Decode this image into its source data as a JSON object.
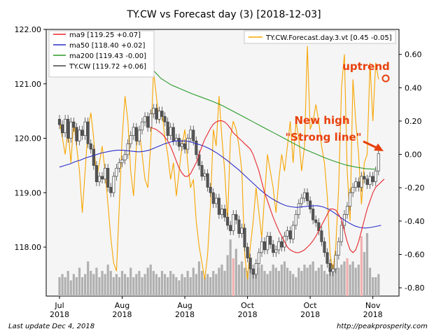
{
  "title": "TY.CW vs Forecast day (3)  [2018-12-03]",
  "footer": {
    "left": "Last update Dec  4, 2018",
    "right": "http://peakprosperity.com"
  },
  "annotations": {
    "uptrend": "uptrend",
    "new_high_line1": "New high",
    "new_high_line2": "\"Strong line\""
  },
  "colors": {
    "background": "#f5f5f5",
    "ma9": "#e8262b",
    "ma50": "#2b2fc9",
    "ma200": "#2a9a2a",
    "price": "#444444",
    "forecast": "#f7a500",
    "annotation": "#e8400c",
    "volume": "#b0b0b0",
    "volume_up": "#f0b0b0"
  },
  "chart_data": {
    "type": "candlestick",
    "title": "TY.CW vs Forecast day (3)  [2018-12-03]",
    "left_axis": {
      "ylim": [
        117.1,
        122.0
      ],
      "ticks": [
        "122.00",
        "121.00",
        "120.00",
        "119.00",
        "118.00"
      ],
      "tick_values": [
        122,
        121,
        120,
        119,
        118
      ]
    },
    "right_axis": {
      "ylim": [
        -0.85,
        0.75
      ],
      "ticks": [
        "0.60",
        "0.40",
        "0.20",
        "0.00",
        "-0.20",
        "-0.40",
        "-0.60",
        "-0.80"
      ],
      "tick_values": [
        0.6,
        0.4,
        0.2,
        0.0,
        -0.2,
        -0.4,
        -0.6,
        -0.8
      ]
    },
    "x_axis": {
      "range": [
        0,
        115
      ],
      "ticks": [
        {
          "x": 0,
          "line1": "Jul",
          "line2": "2018"
        },
        {
          "x": 22,
          "line1": "Aug",
          "line2": "2018"
        },
        {
          "x": 44,
          "line1": "Aug",
          "line2": "2018"
        },
        {
          "x": 66,
          "line1": "Oct",
          "line2": "2018"
        },
        {
          "x": 88,
          "line1": "Oct",
          "line2": "2018"
        },
        {
          "x": 110,
          "line1": "Nov",
          "line2": "2018"
        }
      ]
    },
    "legend_left": [
      "ma9 [119.25 +0.07]",
      "ma50 [118.40 +0.02]",
      "ma200 [119.43 -0.00]",
      "TY.CW [119.72 +0.06]"
    ],
    "legend_right": [
      "TY.CW.Forecast.day.3.vt [0.45 -0.05]"
    ],
    "legend_left_position": "top-left",
    "legend_right_position": "top-right",
    "close": [
      120.25,
      120.1,
      120.35,
      120.0,
      120.3,
      120.2,
      119.95,
      120.15,
      120.05,
      120.3,
      119.9,
      119.8,
      119.5,
      119.2,
      119.3,
      119.25,
      119.45,
      119.1,
      119.0,
      119.3,
      119.45,
      119.55,
      119.6,
      119.7,
      119.9,
      120.05,
      120.2,
      119.95,
      120.15,
      120.3,
      120.4,
      120.2,
      120.45,
      120.55,
      120.35,
      120.5,
      120.4,
      120.3,
      120.05,
      120.2,
      119.95,
      120.0,
      119.85,
      119.9,
      119.8,
      120.0,
      120.15,
      119.95,
      119.7,
      119.5,
      119.3,
      119.35,
      119.1,
      119.0,
      118.8,
      118.9,
      118.6,
      118.7,
      118.55,
      118.4,
      118.3,
      118.6,
      118.5,
      118.25,
      118.35,
      118.0,
      117.8,
      117.6,
      117.5,
      117.7,
      117.9,
      118.1,
      117.95,
      118.2,
      118.05,
      117.9,
      117.95,
      118.1,
      118.0,
      118.2,
      118.3,
      118.15,
      118.4,
      118.6,
      118.8,
      118.9,
      119.0,
      118.85,
      118.7,
      118.5,
      118.45,
      118.3,
      118.1,
      117.9,
      117.7,
      117.55,
      117.6,
      117.85,
      118.1,
      118.4,
      118.6,
      118.75,
      119.0,
      119.1,
      119.2,
      119.1,
      119.3,
      119.25,
      119.15,
      119.3,
      119.2,
      119.4,
      119.72
    ],
    "ma9": [
      120.2,
      120.18,
      120.16,
      120.12,
      120.08,
      120.02,
      119.95,
      119.85,
      119.72,
      119.58,
      119.45,
      119.36,
      119.3,
      119.3,
      119.35,
      119.45,
      119.55,
      119.7,
      119.85,
      119.98,
      120.08,
      120.18,
      120.26,
      120.3,
      120.32,
      120.32,
      120.3,
      120.25,
      120.18,
      120.1,
      120.05,
      120.0,
      119.95,
      119.9,
      119.85,
      119.8,
      119.7,
      119.55,
      119.4,
      119.2,
      119.0,
      118.85,
      118.7,
      118.55,
      118.42,
      118.3,
      118.2,
      118.1,
      118.0,
      117.95,
      117.92,
      117.9,
      117.9,
      117.92,
      117.95,
      118.0,
      118.05,
      118.12,
      118.2,
      118.3,
      118.4,
      118.5,
      118.6,
      118.7,
      118.7,
      118.68,
      118.6,
      118.5,
      118.3,
      118.1,
      117.95,
      117.9,
      117.95,
      118.1,
      118.3,
      118.5,
      118.7,
      118.85,
      119.0,
      119.1,
      119.15,
      119.2,
      119.25
    ],
    "ma9_start": 32,
    "ma50": [
      119.47,
      119.5,
      119.53,
      119.57,
      119.6,
      119.64,
      119.67,
      119.7,
      119.73,
      119.75,
      119.77,
      119.78,
      119.78,
      119.77,
      119.76,
      119.75,
      119.76,
      119.78,
      119.82,
      119.86,
      119.9,
      119.93,
      119.95,
      119.95,
      119.95,
      119.93,
      119.9,
      119.87,
      119.83,
      119.78,
      119.72,
      119.65,
      119.58,
      119.5,
      119.42,
      119.33,
      119.24,
      119.15,
      119.06,
      118.98,
      118.91,
      118.85,
      118.8,
      118.76,
      118.74,
      118.73,
      118.74,
      118.75,
      118.76,
      118.76,
      118.74,
      118.7,
      118.64,
      118.57,
      118.5,
      118.44,
      118.39,
      118.36,
      118.35,
      118.36,
      118.38,
      118.4
    ],
    "ma50_start": 0,
    "ma50_step": 1.85,
    "ma200": [
      121.3,
      121.1,
      120.98,
      120.9,
      120.82,
      120.75,
      120.68,
      120.6,
      120.5,
      120.4,
      120.3,
      120.2,
      120.1,
      120.0,
      119.9,
      119.8,
      119.72,
      119.64,
      119.57,
      119.51,
      119.47,
      119.44,
      119.43
    ],
    "ma200_start": 32,
    "ma200_step": 3.6,
    "forecast": [
      0.2,
      0.1,
      0.0,
      0.15,
      -0.05,
      0.2,
      0.05,
      -0.1,
      -0.35,
      -0.1,
      0.15,
      0.25,
      0.1,
      -0.15,
      -0.05,
      0.05,
      -0.1,
      -0.3,
      -0.5,
      -0.65,
      -0.7,
      -0.3,
      0.1,
      0.35,
      0.2,
      -0.1,
      -0.25,
      0.05,
      0.15,
      0.0,
      -0.15,
      -0.2,
      0.05,
      0.5,
      0.35,
      0.2,
      0.25,
      0.1,
      0.0,
      -0.15,
      -0.05,
      -0.25,
      -0.1,
      0.05,
      0.15,
      -0.05,
      -0.2,
      -0.15,
      -0.4,
      -0.55,
      -0.65,
      -0.75,
      -0.6,
      -0.3,
      0.15,
      0.05,
      0.35,
      0.1,
      -0.1,
      -0.4,
      0.1,
      0.2,
      0.15,
      0.05,
      -0.1,
      -0.6,
      -0.75,
      -0.55,
      -0.4,
      -0.2,
      -0.35,
      -0.5,
      -0.25,
      0.0,
      -0.1,
      -0.2,
      -0.35,
      -0.15,
      0.0,
      -0.1,
      0.05,
      0.2,
      -0.05,
      0.2,
      0.1,
      -0.1,
      0.05,
      0.65,
      0.15,
      0.2,
      0.3,
      0.2,
      0.05,
      -0.05,
      -0.25,
      -0.6,
      -0.7,
      -0.55,
      -0.2,
      0.4,
      0.6,
      -0.1,
      -0.4,
      0.45,
      0.2,
      0.0,
      -0.3,
      -0.05,
      0.0,
      0.55,
      0.2,
      0.55,
      0.45
    ],
    "volume": [
      0.3,
      0.35,
      0.3,
      0.4,
      0.25,
      0.35,
      0.3,
      0.45,
      0.3,
      0.35,
      0.55,
      0.4,
      0.35,
      0.45,
      0.3,
      0.4,
      0.35,
      0.5,
      0.4,
      0.3,
      0.35,
      0.3,
      0.4,
      0.35,
      0.3,
      0.45,
      0.3,
      0.35,
      0.4,
      0.3,
      0.35,
      0.45,
      0.5,
      0.4,
      0.35,
      0.3,
      0.4,
      0.35,
      0.3,
      0.4,
      0.35,
      0.3,
      0.25,
      0.35,
      0.3,
      0.4,
      0.3,
      0.45,
      0.35,
      0.55,
      0.4,
      0.3,
      0.35,
      0.3,
      0.4,
      0.35,
      0.45,
      0.5,
      0.4,
      0.65,
      0.9,
      0.6,
      0.75,
      0.5,
      0.55,
      0.45,
      0.4,
      0.5,
      0.35,
      0.4,
      0.45,
      0.5,
      0.4,
      0.35,
      0.4,
      0.5,
      0.45,
      0.4,
      0.5,
      0.55,
      0.45,
      0.4,
      0.35,
      0.3,
      0.45,
      0.4,
      0.5,
      0.45,
      0.5,
      0.55,
      0.4,
      0.45,
      0.5,
      0.4,
      0.35,
      0.45,
      0.5,
      0.55,
      0.45,
      0.5,
      0.55,
      0.6,
      0.5,
      0.55,
      0.45,
      0.5,
      0.95,
      0.7,
      1.0,
      0.45,
      0.3,
      0.3,
      0.35
    ],
    "volume_max": 1.0
  }
}
